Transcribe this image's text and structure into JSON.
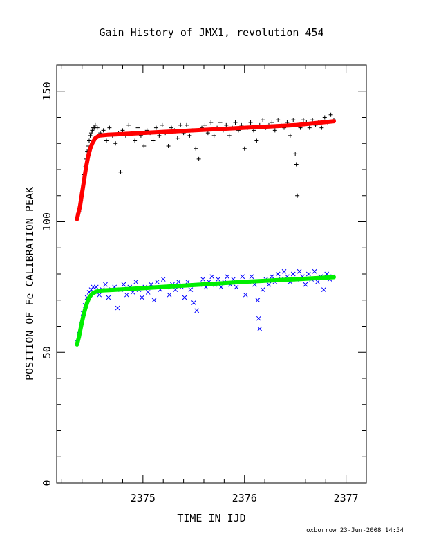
{
  "chart_data": {
    "type": "scatter",
    "title": "Gain History of JMX1, revolution 454",
    "xlabel": "TIME IN IJD",
    "ylabel": "POSITION OF Fe CALIBRATION PEAK",
    "xlim": [
      2374.15,
      2377.2
    ],
    "ylim": [
      0,
      160
    ],
    "x_ticks": [
      2375,
      2376,
      2377
    ],
    "y_ticks": [
      0,
      50,
      100,
      150
    ],
    "grid": false,
    "legend": "none",
    "series": [
      {
        "marker": "+",
        "color": "#000000",
        "points": [
          [
            2374.36,
            103
          ],
          [
            2374.37,
            104
          ],
          [
            2374.38,
            106
          ],
          [
            2374.39,
            108
          ],
          [
            2374.4,
            111
          ],
          [
            2374.41,
            114
          ],
          [
            2374.42,
            118
          ],
          [
            2374.43,
            121
          ],
          [
            2374.44,
            124
          ],
          [
            2374.45,
            127
          ],
          [
            2374.46,
            129
          ],
          [
            2374.47,
            131
          ],
          [
            2374.48,
            133
          ],
          [
            2374.49,
            134
          ],
          [
            2374.5,
            135
          ],
          [
            2374.51,
            136
          ],
          [
            2374.52,
            136
          ],
          [
            2374.53,
            137
          ],
          [
            2374.55,
            136
          ],
          [
            2374.58,
            134
          ],
          [
            2374.61,
            135
          ],
          [
            2374.64,
            131
          ],
          [
            2374.67,
            136
          ],
          [
            2374.7,
            133
          ],
          [
            2374.73,
            130
          ],
          [
            2374.76,
            134
          ],
          [
            2374.78,
            119
          ],
          [
            2374.8,
            135
          ],
          [
            2374.83,
            133
          ],
          [
            2374.86,
            137
          ],
          [
            2374.89,
            134
          ],
          [
            2374.92,
            131
          ],
          [
            2374.95,
            136
          ],
          [
            2374.98,
            133
          ],
          [
            2375.01,
            129
          ],
          [
            2375.04,
            135
          ],
          [
            2375.07,
            134
          ],
          [
            2375.1,
            131
          ],
          [
            2375.13,
            136
          ],
          [
            2375.16,
            133
          ],
          [
            2375.19,
            137
          ],
          [
            2375.22,
            134
          ],
          [
            2375.25,
            129
          ],
          [
            2375.28,
            136
          ],
          [
            2375.31,
            135
          ],
          [
            2375.34,
            132
          ],
          [
            2375.37,
            137
          ],
          [
            2375.4,
            134
          ],
          [
            2375.43,
            137
          ],
          [
            2375.46,
            133
          ],
          [
            2375.49,
            135
          ],
          [
            2375.52,
            128
          ],
          [
            2375.55,
            124
          ],
          [
            2375.58,
            136
          ],
          [
            2375.61,
            137
          ],
          [
            2375.64,
            134
          ],
          [
            2375.67,
            138
          ],
          [
            2375.7,
            133
          ],
          [
            2375.73,
            136
          ],
          [
            2375.76,
            138
          ],
          [
            2375.79,
            135
          ],
          [
            2375.82,
            137
          ],
          [
            2375.85,
            133
          ],
          [
            2375.88,
            136
          ],
          [
            2375.91,
            138
          ],
          [
            2375.94,
            135
          ],
          [
            2375.97,
            137
          ],
          [
            2376.0,
            128
          ],
          [
            2376.03,
            136
          ],
          [
            2376.06,
            138
          ],
          [
            2376.09,
            135
          ],
          [
            2376.12,
            131
          ],
          [
            2376.15,
            137
          ],
          [
            2376.18,
            139
          ],
          [
            2376.21,
            136
          ],
          [
            2376.24,
            137
          ],
          [
            2376.27,
            138
          ],
          [
            2376.3,
            135
          ],
          [
            2376.33,
            139
          ],
          [
            2376.36,
            137
          ],
          [
            2376.39,
            136
          ],
          [
            2376.42,
            138
          ],
          [
            2376.45,
            133
          ],
          [
            2376.48,
            139
          ],
          [
            2376.5,
            126
          ],
          [
            2376.51,
            122
          ],
          [
            2376.52,
            110
          ],
          [
            2376.55,
            136
          ],
          [
            2376.58,
            139
          ],
          [
            2376.61,
            138
          ],
          [
            2376.64,
            136
          ],
          [
            2376.67,
            139
          ],
          [
            2376.7,
            137
          ],
          [
            2376.73,
            138
          ],
          [
            2376.76,
            136
          ],
          [
            2376.79,
            140
          ],
          [
            2376.82,
            138
          ],
          [
            2376.85,
            141
          ],
          [
            2376.88,
            139
          ]
        ]
      },
      {
        "marker": "x",
        "color": "#0000ff",
        "points": [
          [
            2374.35,
            54
          ],
          [
            2374.37,
            57
          ],
          [
            2374.39,
            61
          ],
          [
            2374.41,
            65
          ],
          [
            2374.43,
            68
          ],
          [
            2374.45,
            71
          ],
          [
            2374.47,
            73
          ],
          [
            2374.49,
            74
          ],
          [
            2374.51,
            75
          ],
          [
            2374.54,
            75
          ],
          [
            2374.57,
            72
          ],
          [
            2374.6,
            74
          ],
          [
            2374.63,
            76
          ],
          [
            2374.66,
            71
          ],
          [
            2374.69,
            74
          ],
          [
            2374.72,
            75
          ],
          [
            2374.75,
            67
          ],
          [
            2374.78,
            74
          ],
          [
            2374.81,
            76
          ],
          [
            2374.84,
            72
          ],
          [
            2374.87,
            75
          ],
          [
            2374.9,
            73
          ],
          [
            2374.93,
            77
          ],
          [
            2374.96,
            74
          ],
          [
            2374.99,
            71
          ],
          [
            2375.02,
            75
          ],
          [
            2375.05,
            73
          ],
          [
            2375.08,
            76
          ],
          [
            2375.11,
            70
          ],
          [
            2375.14,
            77
          ],
          [
            2375.17,
            74
          ],
          [
            2375.2,
            78
          ],
          [
            2375.23,
            75
          ],
          [
            2375.26,
            72
          ],
          [
            2375.29,
            76
          ],
          [
            2375.32,
            74
          ],
          [
            2375.35,
            77
          ],
          [
            2375.38,
            75
          ],
          [
            2375.41,
            71
          ],
          [
            2375.44,
            77
          ],
          [
            2375.47,
            74
          ],
          [
            2375.5,
            69
          ],
          [
            2375.53,
            66
          ],
          [
            2375.56,
            76
          ],
          [
            2375.59,
            78
          ],
          [
            2375.62,
            75
          ],
          [
            2375.65,
            77
          ],
          [
            2375.68,
            79
          ],
          [
            2375.71,
            76
          ],
          [
            2375.74,
            78
          ],
          [
            2375.77,
            75
          ],
          [
            2375.8,
            77
          ],
          [
            2375.83,
            79
          ],
          [
            2375.86,
            76
          ],
          [
            2375.89,
            78
          ],
          [
            2375.92,
            75
          ],
          [
            2375.95,
            77
          ],
          [
            2375.98,
            79
          ],
          [
            2376.01,
            72
          ],
          [
            2376.04,
            77
          ],
          [
            2376.07,
            79
          ],
          [
            2376.1,
            76
          ],
          [
            2376.13,
            70
          ],
          [
            2376.14,
            63
          ],
          [
            2376.15,
            59
          ],
          [
            2376.18,
            74
          ],
          [
            2376.21,
            78
          ],
          [
            2376.24,
            76
          ],
          [
            2376.27,
            79
          ],
          [
            2376.3,
            77
          ],
          [
            2376.33,
            80
          ],
          [
            2376.36,
            78
          ],
          [
            2376.39,
            81
          ],
          [
            2376.42,
            79
          ],
          [
            2376.45,
            77
          ],
          [
            2376.48,
            80
          ],
          [
            2376.51,
            78
          ],
          [
            2376.54,
            81
          ],
          [
            2376.57,
            79
          ],
          [
            2376.6,
            76
          ],
          [
            2376.63,
            80
          ],
          [
            2376.66,
            78
          ],
          [
            2376.69,
            81
          ],
          [
            2376.72,
            77
          ],
          [
            2376.75,
            79
          ],
          [
            2376.78,
            74
          ],
          [
            2376.81,
            80
          ],
          [
            2376.84,
            78
          ],
          [
            2376.87,
            79
          ]
        ]
      },
      {
        "style": "fit-line",
        "color": "#ff0000",
        "points": [
          [
            2374.35,
            101
          ],
          [
            2374.38,
            106
          ],
          [
            2374.4,
            111
          ],
          [
            2374.42,
            116
          ],
          [
            2374.44,
            121
          ],
          [
            2374.46,
            125
          ],
          [
            2374.48,
            128
          ],
          [
            2374.5,
            130
          ],
          [
            2374.53,
            132
          ],
          [
            2374.57,
            133
          ],
          [
            2374.65,
            133.3
          ],
          [
            2374.8,
            133.6
          ],
          [
            2375.0,
            134
          ],
          [
            2375.25,
            134.5
          ],
          [
            2375.5,
            135
          ],
          [
            2375.75,
            135.5
          ],
          [
            2376.0,
            136
          ],
          [
            2376.25,
            136.5
          ],
          [
            2376.5,
            137
          ],
          [
            2376.7,
            137.8
          ],
          [
            2376.88,
            138.5
          ]
        ]
      },
      {
        "style": "fit-line",
        "color": "#00ee00",
        "points": [
          [
            2374.35,
            53
          ],
          [
            2374.37,
            56
          ],
          [
            2374.39,
            60
          ],
          [
            2374.41,
            63.5
          ],
          [
            2374.43,
            66.5
          ],
          [
            2374.45,
            69
          ],
          [
            2374.47,
            71
          ],
          [
            2374.5,
            72.5
          ],
          [
            2374.54,
            73.3
          ],
          [
            2374.6,
            73.7
          ],
          [
            2374.75,
            74
          ],
          [
            2375.0,
            74.6
          ],
          [
            2375.25,
            75.2
          ],
          [
            2375.5,
            75.8
          ],
          [
            2375.75,
            76.4
          ],
          [
            2376.0,
            77
          ],
          [
            2376.25,
            77.5
          ],
          [
            2376.5,
            78
          ],
          [
            2376.7,
            78.4
          ],
          [
            2376.88,
            78.8
          ]
        ]
      }
    ]
  },
  "footer": "oxborrow 23-Jun-2008 14:54"
}
